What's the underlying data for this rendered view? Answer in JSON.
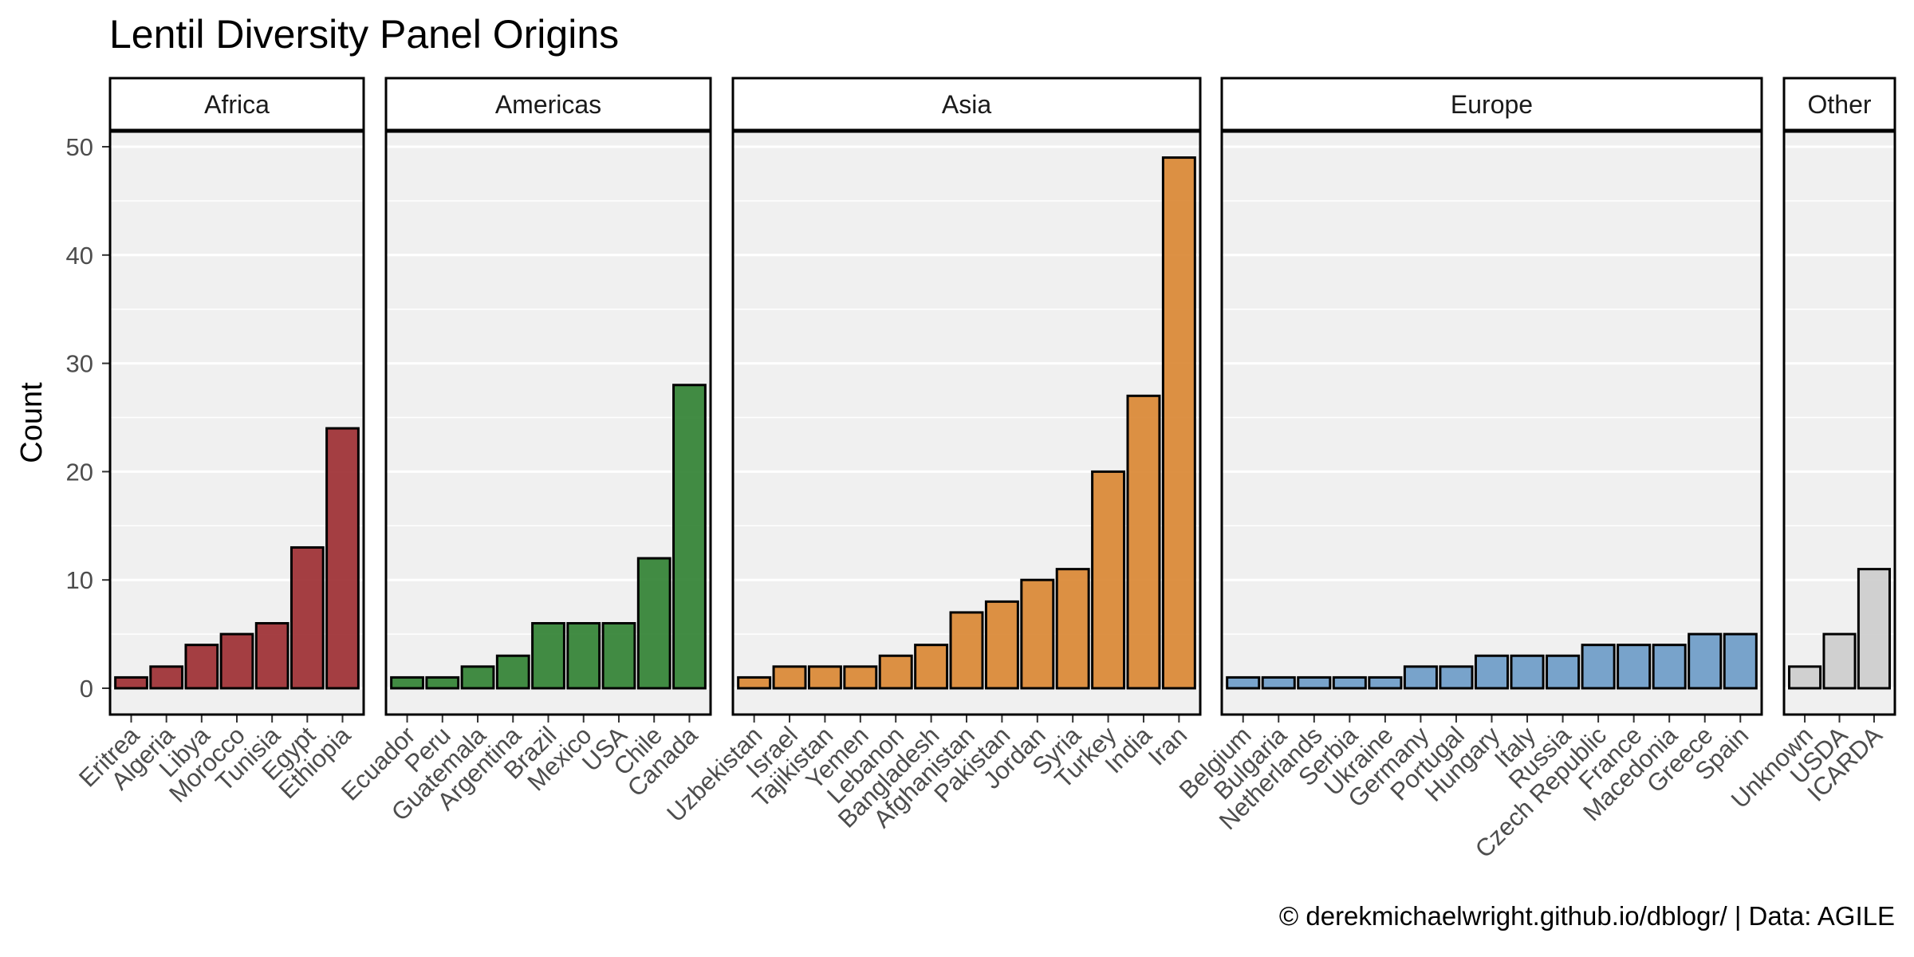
{
  "chart_data": {
    "type": "bar",
    "title": "Lentil Diversity Panel Origins",
    "ylabel": "Count",
    "xlabel": "",
    "ylim": [
      0,
      52
    ],
    "yticks": [
      0,
      10,
      20,
      30,
      40,
      50
    ],
    "grid": true,
    "legend": "none",
    "caption": "© derekmichaelwright.github.io/dblogr/ | Data: AGILE",
    "facets": [
      {
        "name": "Africa",
        "color": "#9b2a2f",
        "categories": [
          "Eritrea",
          "Algeria",
          "Libya",
          "Morocco",
          "Tunisia",
          "Egypt",
          "Ethiopia"
        ],
        "values": [
          1,
          2,
          4,
          5,
          6,
          13,
          24
        ]
      },
      {
        "name": "Americas",
        "color": "#2e8030",
        "categories": [
          "Ecuador",
          "Peru",
          "Guatemala",
          "Argentina",
          "Brazil",
          "Mexico",
          "USA",
          "Chile",
          "Canada"
        ],
        "values": [
          1,
          1,
          2,
          3,
          6,
          6,
          6,
          12,
          28
        ]
      },
      {
        "name": "Asia",
        "color": "#d98530",
        "categories": [
          "Uzbekistan",
          "Israel",
          "Tajikistan",
          "Yemen",
          "Lebanon",
          "Bangladesh",
          "Afghanistan",
          "Pakistan",
          "Jordan",
          "Syria",
          "Turkey",
          "India",
          "Iran"
        ],
        "values": [
          1,
          2,
          2,
          2,
          3,
          4,
          7,
          8,
          10,
          11,
          20,
          27,
          49
        ]
      },
      {
        "name": "Europe",
        "color": "#6a9ac6",
        "categories": [
          "Belgium",
          "Bulgaria",
          "Netherlands",
          "Serbia",
          "Ukraine",
          "Germany",
          "Portugal",
          "Hungary",
          "Italy",
          "Russia",
          "Czech Republic",
          "France",
          "Macedonia",
          "Greece",
          "Spain"
        ],
        "values": [
          1,
          1,
          1,
          1,
          1,
          2,
          2,
          3,
          3,
          3,
          4,
          4,
          4,
          5,
          5
        ]
      },
      {
        "name": "Other",
        "color": "#cccccc",
        "categories": [
          "Unknown",
          "USDA",
          "ICARDA"
        ],
        "values": [
          2,
          5,
          11
        ]
      }
    ]
  }
}
